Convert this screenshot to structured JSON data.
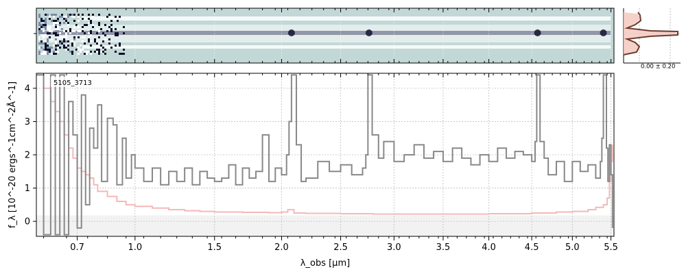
{
  "chart_data": {
    "type": "line",
    "object_id": "5105_3713",
    "xlabel": "λ_obs [μm]",
    "ylabel": "f_λ [10^-20 ergs^-1cm^-2Å^-1]",
    "xlim": [
      0.52,
      5.54
    ],
    "ylim": [
      -0.45,
      4.45
    ],
    "x_scale": "sqrt",
    "x_ticks": [
      0.7,
      1.0,
      1.5,
      2.0,
      2.5,
      3.0,
      3.5,
      4.0,
      4.5,
      5.0,
      5.5
    ],
    "y_ticks": [
      0,
      1,
      2,
      3,
      4
    ],
    "grid": true,
    "noise_label": "0.00 ± 0.20",
    "colors": {
      "flux": "#888888",
      "error": "#f4b8b8",
      "spectrum2d_bg": "#c2d8d6",
      "spectrum2d_trace": "#2a2f55",
      "profile_line": "#6b3c2e",
      "profile_fill": "#f3c5bd",
      "zero_band": "#f2f2f2"
    },
    "emission_lines_um": [
      2.08,
      2.76,
      4.57,
      5.4
    ],
    "series": [
      {
        "x": [
          0.52,
          0.55,
          0.58,
          0.6,
          0.62,
          0.64,
          0.66,
          0.68,
          0.7,
          0.72,
          0.74,
          0.76,
          0.78,
          0.8,
          0.82,
          0.85,
          0.88,
          0.9,
          0.93,
          0.95,
          0.98,
          1.0,
          1.05,
          1.1,
          1.15,
          1.2,
          1.25,
          1.3,
          1.35,
          1.4,
          1.45,
          1.5,
          1.55,
          1.6,
          1.65,
          1.7,
          1.75,
          1.8,
          1.85,
          1.9,
          1.95,
          2.0,
          2.04,
          2.06,
          2.08,
          2.1,
          2.12,
          2.16,
          2.2,
          2.3,
          2.4,
          2.5,
          2.6,
          2.7,
          2.73,
          2.75,
          2.77,
          2.79,
          2.85,
          2.9,
          3.0,
          3.1,
          3.2,
          3.3,
          3.4,
          3.5,
          3.6,
          3.7,
          3.8,
          3.9,
          4.0,
          4.1,
          4.2,
          4.3,
          4.4,
          4.5,
          4.54,
          4.56,
          4.58,
          4.6,
          4.65,
          4.7,
          4.8,
          4.9,
          5.0,
          5.1,
          5.2,
          5.3,
          5.36,
          5.38,
          5.4,
          5.42,
          5.44,
          5.46,
          5.48,
          5.5,
          5.52
        ],
        "y": [
          4.4,
          -0.4,
          4.4,
          -0.4,
          4.4,
          -0.4,
          3.6,
          2.6,
          -0.2,
          3.8,
          0.5,
          2.8,
          2.2,
          3.5,
          1.2,
          3.1,
          2.9,
          1.1,
          2.5,
          1.3,
          2.0,
          1.6,
          1.2,
          1.6,
          1.1,
          1.5,
          1.2,
          1.6,
          1.1,
          1.5,
          1.3,
          1.2,
          1.3,
          1.7,
          1.1,
          1.6,
          1.3,
          1.5,
          2.6,
          1.2,
          1.6,
          1.4,
          2.0,
          3.0,
          4.4,
          4.4,
          2.3,
          1.2,
          1.3,
          1.8,
          1.5,
          1.7,
          1.4,
          1.6,
          2.0,
          4.4,
          4.4,
          2.6,
          1.9,
          2.4,
          1.8,
          2.0,
          2.3,
          1.9,
          2.1,
          1.8,
          2.2,
          1.9,
          1.7,
          2.0,
          1.8,
          2.2,
          1.9,
          2.1,
          2.0,
          1.8,
          2.4,
          4.4,
          4.4,
          2.4,
          1.9,
          1.4,
          1.8,
          1.2,
          1.8,
          1.5,
          1.7,
          1.3,
          1.8,
          2.5,
          4.4,
          4.4,
          2.2,
          1.2,
          2.3,
          1.4,
          -0.2
        ]
      },
      {
        "x": [
          0.52,
          0.55,
          0.58,
          0.6,
          0.62,
          0.64,
          0.66,
          0.68,
          0.7,
          0.72,
          0.74,
          0.76,
          0.78,
          0.8,
          0.85,
          0.9,
          0.95,
          1.0,
          1.1,
          1.2,
          1.3,
          1.4,
          1.5,
          1.7,
          1.9,
          2.0,
          2.05,
          2.1,
          2.2,
          2.5,
          2.8,
          3.0,
          3.5,
          4.0,
          4.5,
          4.8,
          5.0,
          5.2,
          5.3,
          5.4,
          5.45,
          5.48,
          5.5,
          5.52
        ],
        "y": [
          4.4,
          4.0,
          3.6,
          3.3,
          3.0,
          2.6,
          2.2,
          1.9,
          1.6,
          1.5,
          1.4,
          1.3,
          1.1,
          0.9,
          0.75,
          0.6,
          0.5,
          0.45,
          0.4,
          0.35,
          0.32,
          0.3,
          0.28,
          0.27,
          0.26,
          0.28,
          0.35,
          0.25,
          0.24,
          0.23,
          0.22,
          0.22,
          0.22,
          0.23,
          0.25,
          0.28,
          0.3,
          0.35,
          0.42,
          0.5,
          0.7,
          1.2,
          1.8,
          2.3
        ]
      }
    ]
  }
}
